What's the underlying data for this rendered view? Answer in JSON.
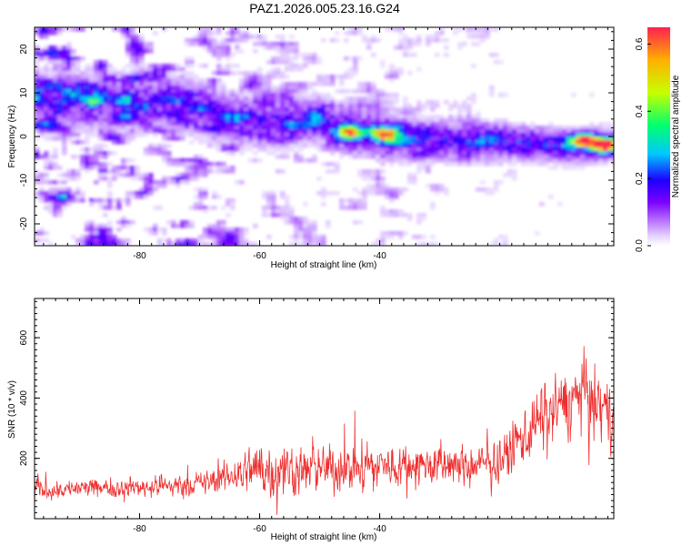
{
  "figure_title": "PAZ1.2026.005.23.16.G24",
  "colors": {
    "snr_line": "#ee2f2f",
    "colormap": [
      "#ffffff",
      "#e8d8ff",
      "#b36bff",
      "#7b00ff",
      "#1c00ff",
      "#00c8ff",
      "#00ff70",
      "#c8ff00",
      "#ffb000",
      "#ff2050"
    ]
  },
  "chart_data": [
    {
      "type": "heatmap",
      "title": "",
      "xlabel": "Height of straight line (km)",
      "ylabel": "Frequency (Hz)",
      "xlim": [
        -97.5,
        -1
      ],
      "ylim": [
        -25,
        25
      ],
      "xticks": [
        -80,
        -60,
        -40
      ],
      "xtick_labels": [
        "-80",
        "-60",
        "-40"
      ],
      "yticks": [
        -20,
        -10,
        0,
        10,
        20
      ],
      "ytick_labels": [
        "-20",
        "-10",
        "0",
        "10",
        "20"
      ],
      "ridge": {
        "description": "dominant frequency ridge",
        "points": [
          [
            -80,
            8
          ],
          [
            -72,
            7
          ],
          [
            -65,
            4
          ],
          [
            -58,
            3
          ],
          [
            -50,
            4
          ],
          [
            -45,
            1
          ],
          [
            -40,
            0
          ],
          [
            -30,
            -1
          ],
          [
            -20,
            -1
          ],
          [
            -10,
            -2
          ],
          [
            -1,
            -2
          ]
        ]
      },
      "peaks": [
        {
          "x": -45,
          "y": 1,
          "amplitude": 0.45
        },
        {
          "x": -39,
          "y": 0.5,
          "amplitude": 0.5
        },
        {
          "x": -6,
          "y": -1,
          "amplitude": 0.55
        },
        {
          "x": -2.5,
          "y": -2,
          "amplitude": 0.62
        }
      ],
      "colorbar": {
        "label": "Normalized spectral amplitude",
        "range": [
          0,
          0.65
        ],
        "ticks": [
          0.0,
          0.2,
          0.4,
          0.6
        ],
        "tick_labels": [
          "0.0",
          "0.2",
          "0.4",
          "0.6"
        ]
      }
    },
    {
      "type": "line",
      "title": "",
      "xlabel": "Height of straight line (km)",
      "ylabel": "SNR (10 * v/v)",
      "xlim": [
        -97.5,
        -1
      ],
      "ylim": [
        0,
        730
      ],
      "xticks": [
        -80,
        -60,
        -40
      ],
      "xtick_labels": [
        "-80",
        "-60",
        "-40"
      ],
      "yticks": [
        200,
        400,
        600
      ],
      "ytick_labels": [
        "200",
        "400",
        "600"
      ],
      "series": [
        {
          "name": "SNR",
          "envelope_x": [
            -97.5,
            -90,
            -80,
            -70,
            -65,
            -60,
            -55,
            -50,
            -45,
            -40,
            -35,
            -30,
            -25,
            -20,
            -15,
            -10,
            -6,
            -3,
            -1
          ],
          "envelope_mean": [
            95,
            100,
            105,
            115,
            140,
            170,
            160,
            165,
            170,
            175,
            180,
            175,
            170,
            190,
            300,
            380,
            420,
            360,
            330
          ],
          "envelope_amp": [
            60,
            60,
            65,
            75,
            110,
            200,
            170,
            150,
            160,
            150,
            140,
            130,
            130,
            140,
            220,
            220,
            230,
            220,
            200
          ]
        }
      ]
    }
  ]
}
